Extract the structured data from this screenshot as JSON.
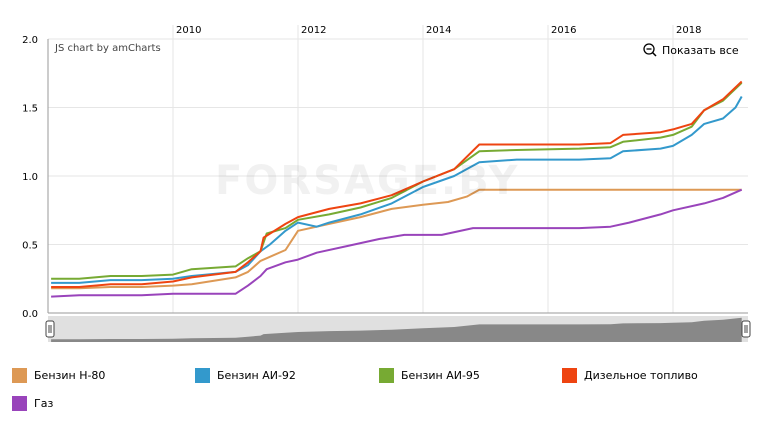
{
  "chart_data": {
    "type": "line",
    "credit": "JS chart by amCharts",
    "show_all_label": "Показать все",
    "watermark": "FORSAGE.BY",
    "x_ticks": [
      "2010",
      "2012",
      "2014",
      "2016",
      "2018"
    ],
    "y_ticks": [
      "0.0",
      "0.5",
      "1.0",
      "1.5",
      "2.0"
    ],
    "xlim": [
      2008.0,
      2019.2
    ],
    "ylim": [
      0,
      2.0
    ],
    "series": [
      {
        "name": "Бензин Н-80",
        "color": "#DD9955",
        "x": [
          2008.05,
          2008.5,
          2009.0,
          2009.5,
          2010.0,
          2010.3,
          2011.0,
          2011.2,
          2011.4,
          2011.8,
          2012.0,
          2012.5,
          2013.0,
          2013.5,
          2014.0,
          2014.4,
          2014.7,
          2014.9,
          2015.5,
          2016.5,
          2017.5,
          2018.5,
          2019.1
        ],
        "y": [
          0.18,
          0.18,
          0.19,
          0.19,
          0.2,
          0.21,
          0.26,
          0.3,
          0.38,
          0.46,
          0.6,
          0.65,
          0.7,
          0.76,
          0.79,
          0.81,
          0.85,
          0.9,
          0.9,
          0.9,
          0.9,
          0.9,
          0.9
        ]
      },
      {
        "name": "Бензин АИ-92",
        "color": "#3399CC",
        "x": [
          2008.05,
          2008.5,
          2009.0,
          2009.5,
          2010.0,
          2010.3,
          2011.0,
          2011.2,
          2011.4,
          2011.55,
          2011.8,
          2012.0,
          2012.3,
          2012.5,
          2013.0,
          2013.5,
          2014.0,
          2014.5,
          2014.9,
          2015.5,
          2016.5,
          2017.0,
          2017.2,
          2017.8,
          2018.0,
          2018.3,
          2018.5,
          2018.8,
          2019.0,
          2019.1
        ],
        "y": [
          0.22,
          0.22,
          0.24,
          0.24,
          0.25,
          0.27,
          0.3,
          0.35,
          0.45,
          0.5,
          0.6,
          0.66,
          0.63,
          0.66,
          0.72,
          0.8,
          0.92,
          1.0,
          1.1,
          1.12,
          1.12,
          1.13,
          1.18,
          1.2,
          1.22,
          1.3,
          1.38,
          1.42,
          1.5,
          1.58
        ]
      },
      {
        "name": "Бензин АИ-95",
        "color": "#77AA33",
        "x": [
          2008.05,
          2008.5,
          2009.0,
          2009.5,
          2010.0,
          2010.3,
          2011.0,
          2011.2,
          2011.4,
          2011.5,
          2011.8,
          2012.0,
          2012.5,
          2013.0,
          2013.5,
          2014.0,
          2014.5,
          2014.9,
          2015.5,
          2016.5,
          2017.0,
          2017.2,
          2017.8,
          2018.0,
          2018.3,
          2018.5,
          2018.8,
          2019.1
        ],
        "y": [
          0.25,
          0.25,
          0.27,
          0.27,
          0.28,
          0.32,
          0.34,
          0.4,
          0.45,
          0.58,
          0.62,
          0.68,
          0.72,
          0.77,
          0.84,
          0.96,
          1.05,
          1.18,
          1.19,
          1.2,
          1.21,
          1.25,
          1.28,
          1.3,
          1.36,
          1.48,
          1.55,
          1.68
        ]
      },
      {
        "name": "Дизельное топливо",
        "color": "#EE4411",
        "x": [
          2008.05,
          2008.5,
          2009.0,
          2009.5,
          2010.0,
          2010.3,
          2011.0,
          2011.2,
          2011.4,
          2011.45,
          2011.8,
          2012.0,
          2012.5,
          2013.0,
          2013.5,
          2014.0,
          2014.5,
          2014.9,
          2015.5,
          2016.5,
          2017.0,
          2017.2,
          2017.8,
          2018.0,
          2018.3,
          2018.5,
          2018.8,
          2019.1
        ],
        "y": [
          0.19,
          0.19,
          0.21,
          0.21,
          0.23,
          0.26,
          0.3,
          0.37,
          0.45,
          0.55,
          0.65,
          0.7,
          0.76,
          0.8,
          0.86,
          0.96,
          1.05,
          1.23,
          1.23,
          1.23,
          1.24,
          1.3,
          1.32,
          1.34,
          1.38,
          1.48,
          1.56,
          1.69
        ]
      },
      {
        "name": "Газ",
        "color": "#9944BB",
        "x": [
          2008.05,
          2008.5,
          2009.0,
          2009.5,
          2010.0,
          2011.0,
          2011.2,
          2011.4,
          2011.5,
          2011.8,
          2012.0,
          2012.3,
          2012.8,
          2013.3,
          2013.7,
          2014.3,
          2014.8,
          2015.5,
          2016.5,
          2017.0,
          2017.3,
          2017.8,
          2018.0,
          2018.5,
          2018.8,
          2019.1
        ],
        "y": [
          0.12,
          0.13,
          0.13,
          0.13,
          0.14,
          0.14,
          0.2,
          0.27,
          0.32,
          0.37,
          0.39,
          0.44,
          0.49,
          0.54,
          0.57,
          0.57,
          0.62,
          0.62,
          0.62,
          0.63,
          0.66,
          0.72,
          0.75,
          0.8,
          0.84,
          0.9
        ]
      }
    ],
    "legend": [
      "Бензин Н-80",
      "Бензин АИ-92",
      "Бензин АИ-95",
      "Дизельное топливо",
      "Газ"
    ],
    "grid": true,
    "scrollbar": true,
    "colors": {
      "grid": "#e6e6e6",
      "axis": "#999999",
      "scrollbar_bg": "#e0e0e0",
      "scrollbar_fill": "#888888"
    }
  }
}
